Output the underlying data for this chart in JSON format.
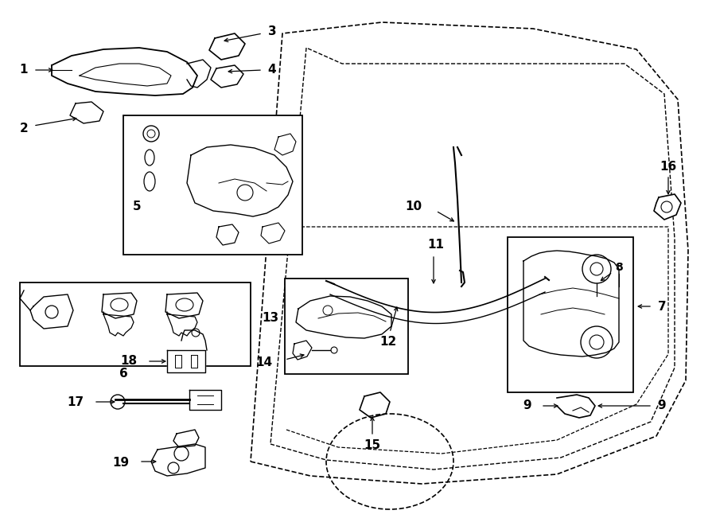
{
  "bg_color": "#ffffff",
  "line_color": "#000000",
  "figsize": [
    9.0,
    6.61
  ],
  "dpi": 100,
  "door_outer": {
    "x": [
      3.5,
      4.5,
      6.0,
      7.8,
      8.7,
      8.75,
      8.7,
      8.4,
      7.5,
      5.2,
      3.8,
      3.5
    ],
    "y": [
      6.3,
      6.52,
      6.55,
      6.38,
      5.85,
      4.8,
      2.2,
      0.85,
      0.45,
      0.28,
      0.38,
      6.3
    ]
  },
  "door_inner": {
    "x": [
      3.8,
      4.6,
      6.1,
      7.6,
      8.35,
      8.38,
      8.3,
      7.95,
      4.2,
      3.8
    ],
    "y": [
      6.0,
      6.25,
      6.28,
      6.1,
      5.6,
      4.6,
      1.4,
      0.75,
      0.65,
      6.0
    ]
  },
  "window_inner": {
    "x": [
      4.0,
      4.8,
      6.2,
      7.4,
      8.05,
      8.08,
      4.1,
      4.0
    ],
    "y": [
      5.85,
      6.1,
      6.12,
      5.95,
      5.45,
      4.5,
      4.5,
      5.85
    ]
  }
}
